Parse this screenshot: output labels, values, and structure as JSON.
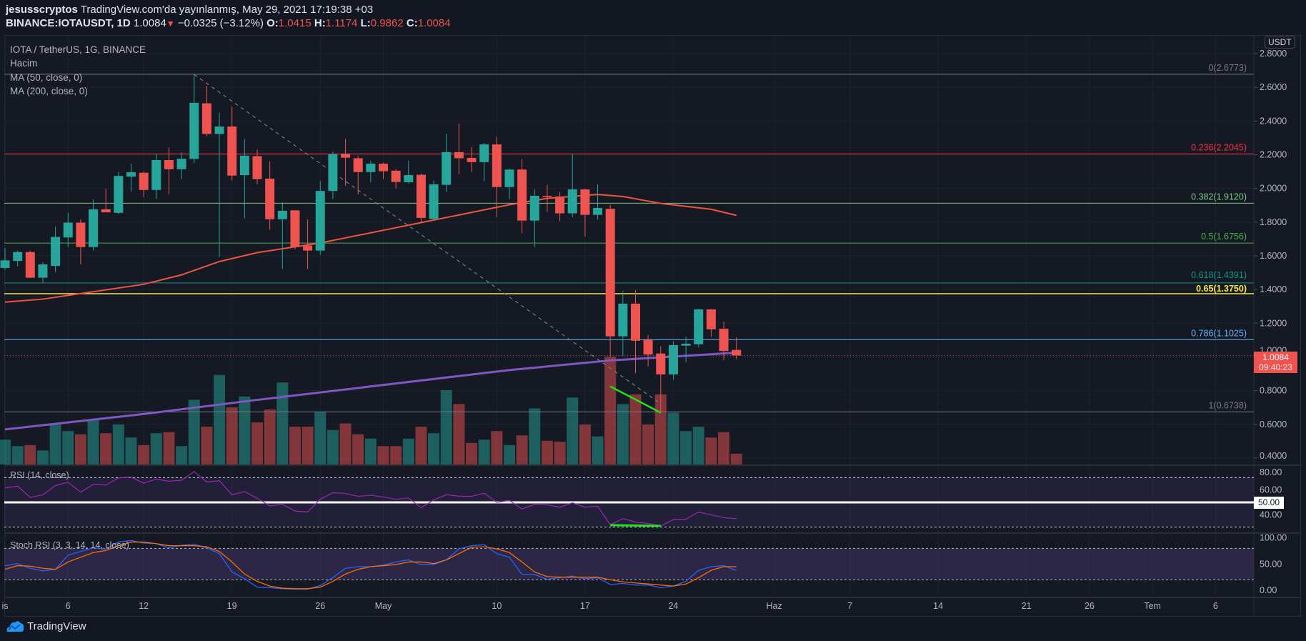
{
  "header": {
    "author": "jesusscryptos",
    "published": "TradingView.com'da yayınlanmış, May 29, 2021 17:19:38 +03",
    "symbol": "BINANCE:IOTAUSDT, 1D",
    "last": "1.0084",
    "change": "−0.0325 (−3.12%)",
    "o_label": "O:",
    "o": "1.0415",
    "h_label": "H:",
    "h": "1.1174",
    "l_label": "L:",
    "l": "0.9862",
    "c_label": "C:",
    "c": "1.0084"
  },
  "legend": {
    "title": "IOTA / TetherUS, 1G, BINANCE",
    "volume": "Hacim",
    "ma50": "MA (50, close, 0)",
    "ma200": "MA (200, close, 0)",
    "rsi": "RSI (14, close)",
    "stoch": "Stoch RSI (3, 3, 14, 14, close)"
  },
  "price_axis": {
    "currency": "USDT",
    "ticks": [
      "2.8000",
      "2.6000",
      "2.4000",
      "2.2000",
      "2.0000",
      "1.8000",
      "1.6000",
      "1.4000",
      "1.2000",
      "1.0000",
      "0.8000",
      "0.6000",
      "0.4000"
    ],
    "current_price": "1.0084",
    "countdown": "09:40:23"
  },
  "rsi_axis": {
    "ticks": [
      "80.00",
      "60.00",
      "40.00"
    ],
    "highlight": "50.00"
  },
  "stoch_axis": {
    "ticks": [
      "100.00",
      "50.00",
      "0.00"
    ]
  },
  "time_axis": {
    "labels": [
      [
        "is",
        "2021-04-01"
      ],
      [
        "6",
        "2021-04-06"
      ],
      [
        "12",
        "2021-04-12"
      ],
      [
        "19",
        "2021-04-19"
      ],
      [
        "26",
        "2021-04-26"
      ],
      [
        "May",
        "2021-05-01"
      ],
      [
        "10",
        "2021-05-10"
      ],
      [
        "17",
        "2021-05-17"
      ],
      [
        "24",
        "2021-05-24"
      ],
      [
        "Haz",
        "2021-06-01"
      ],
      [
        "7",
        "2021-06-07"
      ],
      [
        "14",
        "2021-06-14"
      ],
      [
        "21",
        "2021-06-21"
      ],
      [
        "26",
        "2021-06-26"
      ],
      [
        "Tem",
        "2021-07-01"
      ],
      [
        "6",
        "2021-07-06"
      ]
    ]
  },
  "colors": {
    "up": "#26a69a",
    "down": "#ef5350",
    "ma50": "#f0533f",
    "ma200": "#7e57c2",
    "rsi": "#9c27b0",
    "stoch_k": "#2962ff",
    "stoch_d": "#ff6d00",
    "divergence": "#22e01a"
  },
  "fib_levels": [
    {
      "label": "0(2.6773)",
      "price": 2.6773,
      "color": "#787b86"
    },
    {
      "label": "0.236(2.2045)",
      "price": 2.2045,
      "color": "#f23645"
    },
    {
      "label": "0.382(1.9120)",
      "price": 1.912,
      "color": "#81c784"
    },
    {
      "label": "0.5(1.6756)",
      "price": 1.6756,
      "color": "#4caf50"
    },
    {
      "label": "0.618(1.4391)",
      "price": 1.4391,
      "color": "#089981"
    },
    {
      "label": "0.65(1.3750)",
      "price": 1.375,
      "color": "#f7e64c"
    },
    {
      "label": "0.786(1.1025)",
      "price": 1.1025,
      "color": "#64b5f6"
    },
    {
      "label": "1(0.6738)",
      "price": 0.6738,
      "color": "#787b86"
    }
  ],
  "chart_data": {
    "type": "candlestick",
    "price_range": [
      0.4,
      2.8
    ],
    "candles_columns": [
      "date",
      "open",
      "high",
      "low",
      "close",
      "relative_volume"
    ],
    "candles": [
      [
        "2021-04-01",
        1.528,
        1.646,
        1.517,
        1.573,
        23
      ],
      [
        "2021-04-02",
        1.57,
        1.631,
        1.537,
        1.622,
        17
      ],
      [
        "2021-04-03",
        1.622,
        1.631,
        1.467,
        1.47,
        18
      ],
      [
        "2021-04-04",
        1.47,
        1.563,
        1.44,
        1.549,
        13
      ],
      [
        "2021-04-05",
        1.54,
        1.773,
        1.502,
        1.712,
        37
      ],
      [
        "2021-04-06",
        1.709,
        1.855,
        1.652,
        1.797,
        31
      ],
      [
        "2021-04-07",
        1.797,
        1.816,
        1.549,
        1.652,
        28
      ],
      [
        "2021-04-08",
        1.652,
        1.934,
        1.631,
        1.876,
        42
      ],
      [
        "2021-04-09",
        1.876,
        1.999,
        1.858,
        1.858,
        29
      ],
      [
        "2021-04-10",
        1.855,
        2.096,
        1.846,
        2.074,
        37
      ],
      [
        "2021-04-11",
        2.07,
        2.147,
        1.982,
        2.096,
        25
      ],
      [
        "2021-04-12",
        2.093,
        2.1,
        1.949,
        1.991,
        18
      ],
      [
        "2021-04-13",
        1.991,
        2.206,
        1.937,
        2.168,
        29
      ],
      [
        "2021-04-14",
        2.168,
        2.244,
        1.964,
        2.114,
        30
      ],
      [
        "2021-04-15",
        2.114,
        2.214,
        2.055,
        2.176,
        17
      ],
      [
        "2021-04-16",
        2.175,
        2.676,
        2.149,
        2.508,
        60
      ],
      [
        "2021-04-17",
        2.505,
        2.608,
        2.309,
        2.323,
        35
      ],
      [
        "2021-04-18",
        2.323,
        2.449,
        1.593,
        2.367,
        83
      ],
      [
        "2021-04-19",
        2.367,
        2.486,
        2.047,
        2.076,
        53
      ],
      [
        "2021-04-20",
        2.079,
        2.294,
        1.822,
        2.194,
        63
      ],
      [
        "2021-04-21",
        2.191,
        2.23,
        2.024,
        2.055,
        39
      ],
      [
        "2021-04-22",
        2.058,
        2.161,
        1.755,
        1.817,
        51
      ],
      [
        "2021-04-23",
        1.817,
        1.918,
        1.522,
        1.867,
        76
      ],
      [
        "2021-04-24",
        1.87,
        1.87,
        1.638,
        1.652,
        35
      ],
      [
        "2021-04-25",
        1.661,
        1.816,
        1.522,
        1.631,
        35
      ],
      [
        "2021-04-26",
        1.631,
        2.044,
        1.606,
        1.985,
        49
      ],
      [
        "2021-04-27",
        1.985,
        2.218,
        1.938,
        2.203,
        32
      ],
      [
        "2021-04-28",
        2.206,
        2.294,
        2.015,
        2.182,
        38
      ],
      [
        "2021-04-29",
        2.179,
        2.194,
        1.964,
        2.097,
        28
      ],
      [
        "2021-04-30",
        2.097,
        2.164,
        2.037,
        2.147,
        24
      ],
      [
        "2021-05-01",
        2.147,
        2.153,
        2.055,
        2.102,
        17
      ],
      [
        "2021-05-02",
        2.105,
        2.115,
        2.0,
        2.038,
        17
      ],
      [
        "2021-05-03",
        2.037,
        2.164,
        2.028,
        2.079,
        24
      ],
      [
        "2021-05-04",
        2.081,
        2.088,
        1.8,
        1.825,
        35
      ],
      [
        "2021-05-05",
        1.819,
        2.047,
        1.816,
        2.024,
        29
      ],
      [
        "2021-05-06",
        2.021,
        2.324,
        1.979,
        2.215,
        69
      ],
      [
        "2021-05-07",
        2.215,
        2.385,
        2.085,
        2.179,
        56
      ],
      [
        "2021-05-08",
        2.181,
        2.244,
        2.097,
        2.156,
        20
      ],
      [
        "2021-05-09",
        2.156,
        2.27,
        2.043,
        2.261,
        23
      ],
      [
        "2021-05-10",
        2.261,
        2.306,
        1.828,
        2.008,
        31
      ],
      [
        "2021-05-11",
        2.008,
        2.118,
        1.937,
        2.112,
        18
      ],
      [
        "2021-05-12",
        2.112,
        2.173,
        1.734,
        1.809,
        27
      ],
      [
        "2021-05-13",
        1.809,
        1.994,
        1.652,
        1.956,
        52
      ],
      [
        "2021-05-14",
        1.956,
        2.021,
        1.861,
        1.949,
        22
      ],
      [
        "2021-05-15",
        1.952,
        1.979,
        1.805,
        1.852,
        21
      ],
      [
        "2021-05-16",
        1.852,
        2.206,
        1.828,
        1.994,
        62
      ],
      [
        "2021-05-17",
        1.994,
        1.997,
        1.714,
        1.843,
        37
      ],
      [
        "2021-05-18",
        1.843,
        2.024,
        1.816,
        1.884,
        26
      ],
      [
        "2021-05-19",
        1.879,
        1.903,
        1.002,
        1.122,
        100
      ],
      [
        "2021-05-20",
        1.122,
        1.391,
        1.007,
        1.316,
        56
      ],
      [
        "2021-05-21",
        1.316,
        1.396,
        0.904,
        1.096,
        65
      ],
      [
        "2021-05-22",
        1.101,
        1.131,
        0.942,
        1.014,
        37
      ],
      [
        "2021-05-23",
        1.02,
        1.063,
        0.669,
        0.896,
        65
      ],
      [
        "2021-05-24",
        0.896,
        1.093,
        0.866,
        1.07,
        48
      ],
      [
        "2021-05-25",
        1.067,
        1.119,
        0.967,
        1.078,
        31
      ],
      [
        "2021-05-26",
        1.075,
        1.287,
        1.058,
        1.282,
        35
      ],
      [
        "2021-05-27",
        1.282,
        1.285,
        1.119,
        1.164,
        25
      ],
      [
        "2021-05-28",
        1.167,
        1.21,
        0.979,
        1.035,
        30
      ],
      [
        "2021-05-29",
        1.0415,
        1.1174,
        0.9862,
        1.0084,
        10
      ]
    ],
    "ma50": [
      [
        "2021-04-01",
        1.325
      ],
      [
        "2021-04-04",
        1.343
      ],
      [
        "2021-04-12",
        1.431
      ],
      [
        "2021-04-15",
        1.487
      ],
      [
        "2021-04-18",
        1.566
      ],
      [
        "2021-04-21",
        1.619
      ],
      [
        "2021-04-26",
        1.676
      ],
      [
        "2021-05-04",
        1.797
      ],
      [
        "2021-05-11",
        1.903
      ],
      [
        "2021-05-14",
        1.941
      ],
      [
        "2021-05-18",
        1.964
      ],
      [
        "2021-05-20",
        1.952
      ],
      [
        "2021-05-23",
        1.911
      ],
      [
        "2021-05-27",
        1.876
      ],
      [
        "2021-05-29",
        1.84
      ]
    ],
    "ma200": [
      [
        "2021-04-01",
        0.57
      ],
      [
        "2021-04-12",
        0.661
      ],
      [
        "2021-04-21",
        0.745
      ],
      [
        "2021-05-11",
        0.922
      ],
      [
        "2021-05-19",
        0.979
      ],
      [
        "2021-05-29",
        1.025
      ]
    ],
    "trendline": [
      [
        "2021-04-16",
        2.676
      ],
      [
        "2021-05-23",
        0.722
      ]
    ],
    "divergence_price": [
      [
        "2021-05-19",
        0.825
      ],
      [
        "2021-05-23",
        0.669
      ]
    ],
    "rsi": {
      "range": [
        20,
        80
      ],
      "bands": [
        30,
        70
      ],
      "midline": 50,
      "values": [
        61.7,
        63.2,
        53.9,
        56.2,
        63.6,
        66.3,
        58.2,
        64.6,
        64.0,
        69.8,
        70.4,
        65.5,
        68.8,
        67.1,
        67.9,
        74.9,
        66.5,
        67.5,
        56.2,
        58.7,
        53.3,
        47.1,
        48.4,
        43.0,
        42.2,
        52.5,
        57.8,
        57.2,
        54.9,
        55.8,
        54.3,
        52.5,
        53.5,
        45.7,
        51.9,
        56.2,
        55.0,
        54.9,
        57.4,
        50.0,
        51.6,
        44.6,
        48.4,
        48.1,
        46.1,
        49.6,
        46.1,
        46.9,
        31.9,
        36.8,
        34.1,
        32.9,
        31.0,
        36.0,
        36.4,
        42.2,
        39.9,
        37.6,
        36.8
      ],
      "divergence": [
        [
          "2021-05-19",
          31.6
        ],
        [
          "2021-05-23",
          31.0
        ]
      ]
    },
    "stoch_rsi": {
      "range": [
        0,
        100
      ],
      "bands": [
        20,
        80
      ],
      "k": [
        46.8,
        51,
        42,
        37,
        40,
        67,
        74,
        81,
        79,
        92,
        95,
        90,
        89,
        81,
        86,
        88,
        81,
        70,
        35,
        22,
        6,
        5,
        3,
        2,
        2,
        9,
        24,
        42,
        45,
        45,
        48,
        54,
        58,
        49,
        49,
        58,
        79,
        85,
        87,
        70,
        63,
        30,
        30,
        21,
        24,
        27,
        22,
        24,
        11,
        13,
        10,
        10,
        5,
        8,
        17,
        38,
        45,
        47,
        38
      ],
      "d": [
        40,
        47,
        46,
        42,
        40,
        54,
        63,
        72,
        76,
        85,
        92,
        92,
        89,
        85,
        85,
        85,
        83,
        74,
        54,
        31,
        17,
        8,
        4,
        3,
        3,
        6,
        17,
        31,
        40,
        45,
        47,
        49,
        54,
        54,
        51,
        58,
        70,
        82,
        83,
        79,
        72,
        54,
        35,
        26,
        25,
        25,
        25,
        25,
        20,
        16,
        14,
        12,
        10,
        8,
        12,
        24,
        38,
        45,
        45
      ]
    }
  },
  "footer": {
    "brand": "TradingView"
  }
}
